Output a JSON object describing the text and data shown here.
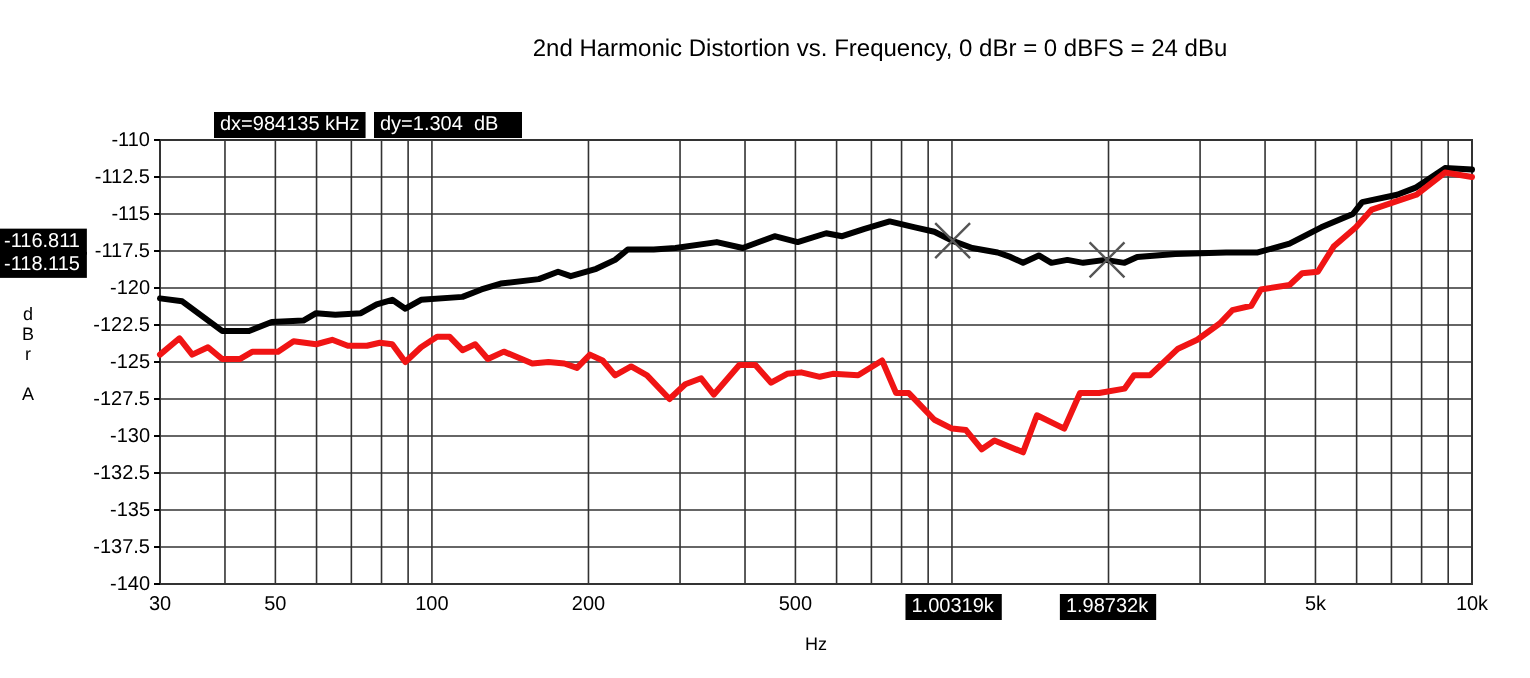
{
  "chart_data": {
    "type": "line",
    "title": "2nd Harmonic Distortion vs. Frequency, 0 dBr = 0 dBFS = 24 dBu",
    "xlabel": "Hz",
    "ylabel": "dBr A",
    "log": "x",
    "grid": true,
    "line_style": "solid",
    "xlim": [
      30,
      10000
    ],
    "xticks": [
      30,
      {
        "value": 40,
        "label": null
      },
      50,
      {
        "value": 60,
        "label": null
      },
      {
        "value": 70,
        "label": null
      },
      {
        "value": 80,
        "label": null
      },
      {
        "value": 90,
        "label": null
      },
      100,
      200,
      {
        "value": 300,
        "label": null
      },
      {
        "value": 400,
        "label": null
      },
      500,
      {
        "value": 600,
        "label": null
      },
      {
        "value": 700,
        "label": null
      },
      {
        "value": 800,
        "label": null
      },
      {
        "value": 900,
        "label": null
      },
      {
        "value": 1000,
        "label": null
      },
      {
        "value": 2000,
        "label": null
      },
      {
        "value": 3000,
        "label": null
      },
      {
        "value": 4000,
        "label": null
      },
      {
        "value": 5000,
        "label": "5k"
      },
      {
        "value": 6000,
        "label": null
      },
      {
        "value": 7000,
        "label": null
      },
      {
        "value": 8000,
        "label": null
      },
      {
        "value": 9000,
        "label": null
      },
      {
        "value": 10000,
        "label": "10k"
      }
    ],
    "ylim": [
      -140,
      -110
    ],
    "yticks": [
      -140,
      -137.5,
      -135,
      -132.5,
      -130,
      -127.5,
      -125,
      -122.5,
      -120,
      -117.5,
      -115,
      -112.5,
      -110
    ],
    "series": [
      {
        "color": "#000000",
        "x": [
          30,
          33.1,
          39.5,
          44.5,
          49.2,
          56.6,
          59.9,
          65.2,
          73,
          78.3,
          83.9,
          88.9,
          95.3,
          114.5,
          124.5,
          135.6,
          160.5,
          174.8,
          184.9,
          207,
          225,
          238,
          267,
          294,
          353,
          396,
          456,
          505,
          573,
          615,
          679,
          759,
          849,
          925,
          1000,
          1094,
          1224,
          1295,
          1370,
          1469,
          1553,
          1667,
          1788,
          1973,
          2147,
          2271,
          2687,
          3366,
          3873,
          4458,
          5130,
          5900,
          6150,
          7180,
          7815,
          8870,
          10000
        ],
        "values": [
          -120.7,
          -120.9,
          -122.9,
          -122.9,
          -122.3,
          -122.2,
          -121.7,
          -121.8,
          -121.7,
          -121.1,
          -120.8,
          -121.4,
          -120.8,
          -120.6,
          -120.1,
          -119.7,
          -119.4,
          -118.9,
          -119.2,
          -118.7,
          -118.1,
          -117.4,
          -117.4,
          -117.3,
          -116.9,
          -117.3,
          -116.5,
          -116.9,
          -116.3,
          -116.5,
          -116.0,
          -115.5,
          -115.9,
          -116.2,
          -116.8,
          -117.3,
          -117.6,
          -117.9,
          -118.3,
          -117.8,
          -118.3,
          -118.1,
          -118.3,
          -118.1,
          -118.3,
          -117.9,
          -117.7,
          -117.6,
          -117.6,
          -117.0,
          -115.9,
          -115.0,
          -114.2,
          -113.7,
          -113.2,
          -111.9,
          -112.0
        ]
      },
      {
        "color": "#f01414",
        "x": [
          30,
          32.7,
          34.6,
          37.1,
          39.5,
          42.7,
          45.2,
          50.6,
          54.2,
          59.9,
          64.3,
          68.9,
          75,
          79.4,
          83.9,
          88.9,
          95.3,
          102.3,
          108.2,
          114.5,
          121.1,
          128.1,
          137.5,
          156,
          167.5,
          179.7,
          190.1,
          201.3,
          212.9,
          225,
          241.6,
          259.2,
          286.3,
          307,
          329.4,
          348.5,
          390,
          418.8,
          449,
          482,
          513,
          557,
          590,
          660,
          734,
          781,
          826,
          925,
          1000,
          1064,
          1141,
          1207,
          1370,
          1457,
          1644,
          1763,
          1919,
          2147,
          2239,
          2401,
          2721,
          2963,
          3272,
          3461,
          3764,
          3927,
          4458,
          4713,
          5053,
          5419,
          5981,
          6417,
          7079,
          7815,
          8870,
          10000
        ],
        "values": [
          -124.5,
          -123.4,
          -124.5,
          -124.0,
          -124.8,
          -124.8,
          -124.3,
          -124.3,
          -123.6,
          -123.8,
          -123.5,
          -123.9,
          -123.9,
          -123.7,
          -123.8,
          -125.0,
          -124.0,
          -123.3,
          -123.3,
          -124.2,
          -123.8,
          -124.8,
          -124.3,
          -125.1,
          -125.0,
          -125.1,
          -125.4,
          -124.5,
          -124.9,
          -125.9,
          -125.3,
          -125.9,
          -127.5,
          -126.5,
          -126.1,
          -127.2,
          -125.2,
          -125.2,
          -126.4,
          -125.8,
          -125.7,
          -126.0,
          -125.8,
          -125.9,
          -124.9,
          -127.1,
          -127.1,
          -128.9,
          -129.5,
          -129.6,
          -130.9,
          -130.3,
          -131.1,
          -128.6,
          -129.5,
          -127.1,
          -127.1,
          -126.8,
          -125.9,
          -125.9,
          -124.1,
          -123.5,
          -122.4,
          -121.5,
          -121.2,
          -120.1,
          -119.8,
          -119.0,
          -118.9,
          -117.2,
          -115.9,
          -114.7,
          -114.2,
          -113.7,
          -112.2,
          -112.5
        ]
      },
      {
        "type": "scatter",
        "marker": "cross",
        "color": "#555555",
        "x": [
          1003,
          1987
        ],
        "values": [
          -116.8,
          -118.1
        ]
      }
    ],
    "annotations": [
      "dx=984135 kHz",
      "dy=1.304  dB",
      "-116.811",
      "-118.115",
      "1.00319k",
      "1.98732k"
    ]
  }
}
